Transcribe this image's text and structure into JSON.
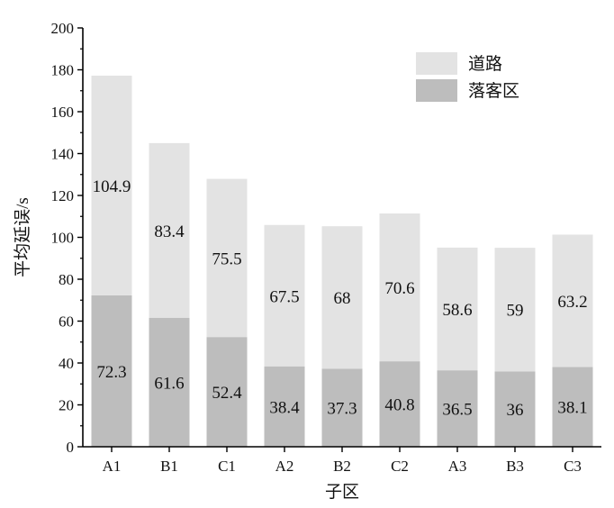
{
  "chart_data": {
    "type": "bar",
    "stacked": true,
    "categories": [
      "A1",
      "B1",
      "C1",
      "A2",
      "B2",
      "C2",
      "A3",
      "B3",
      "C3"
    ],
    "series": [
      {
        "name": "落客区",
        "values": [
          72.3,
          61.6,
          52.4,
          38.4,
          37.3,
          40.8,
          36.5,
          36,
          38.1
        ],
        "color": "#bdbdbd"
      },
      {
        "name": "道路",
        "values": [
          104.9,
          83.4,
          75.5,
          67.5,
          68,
          70.6,
          58.6,
          59,
          63.2
        ],
        "color": "#e3e3e3"
      }
    ],
    "value_labels": {
      "落客区": [
        "72.3",
        "61.6",
        "52.4",
        "38.4",
        "37.3",
        "40.8",
        "36.5",
        "36",
        "38.1"
      ],
      "道路": [
        "104.9",
        "83.4",
        "75.5",
        "67.5",
        "68",
        "70.6",
        "58.6",
        "59",
        "63.2"
      ]
    },
    "xlabel": "子区",
    "ylabel": "平均延误/s",
    "ylim": [
      0,
      200
    ],
    "yticks": [
      "0",
      "20",
      "40",
      "60",
      "80",
      "100",
      "120",
      "140",
      "160",
      "180",
      "200"
    ],
    "grid": false,
    "legend_position": "top-right",
    "legend": [
      "道路",
      "落客区"
    ]
  }
}
